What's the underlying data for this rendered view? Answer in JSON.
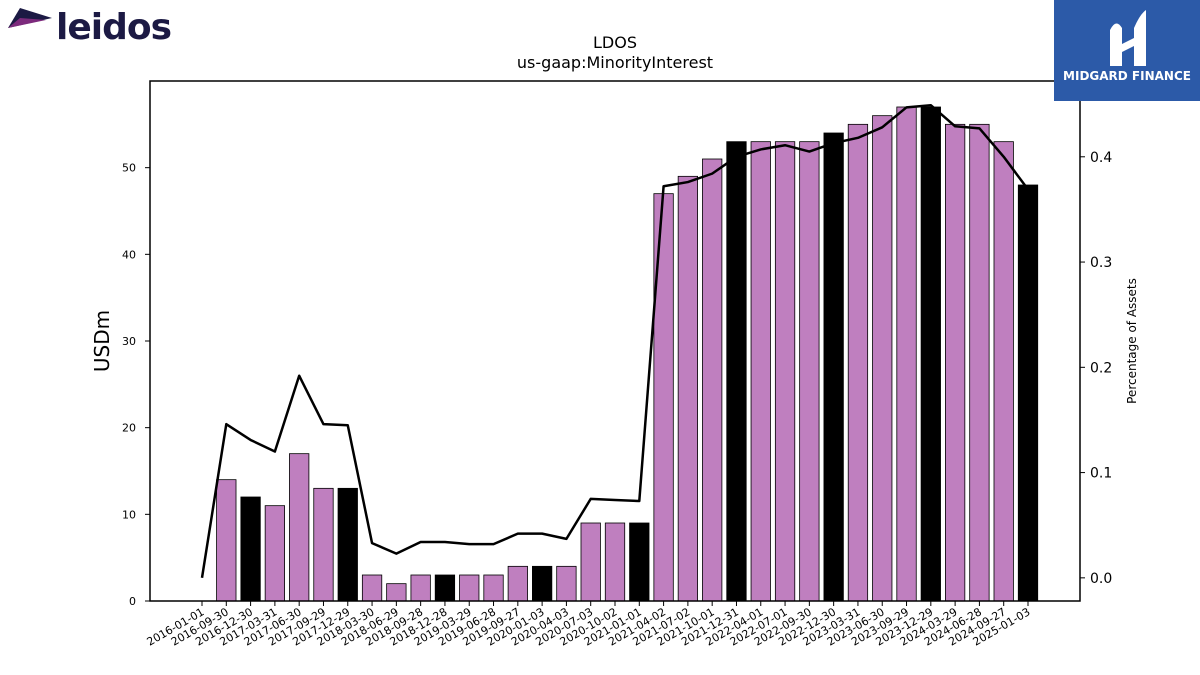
{
  "brand": {
    "left_logo_text": "leidos",
    "right_logo_text": "MIDGARD FINANCE"
  },
  "chart_data": {
    "type": "bar",
    "title": "LDOS",
    "subtitle": "us-gaap:MinorityInterest",
    "ylabel": "USDm",
    "y2label": "Percentage of Assets",
    "ylim": [
      0,
      60
    ],
    "y2lim": [
      -0.022,
      0.472
    ],
    "yticks": [
      0,
      10,
      20,
      30,
      40,
      50
    ],
    "y2ticks": [
      0.0,
      0.1,
      0.2,
      0.3,
      0.4
    ],
    "categories": [
      "2016-01-01",
      "2016-09-30",
      "2016-12-30",
      "2017-03-31",
      "2017-06-30",
      "2017-09-29",
      "2017-12-29",
      "2018-03-30",
      "2018-06-29",
      "2018-09-28",
      "2018-12-28",
      "2019-03-29",
      "2019-06-28",
      "2019-09-27",
      "2020-01-03",
      "2020-04-03",
      "2020-07-03",
      "2020-10-02",
      "2021-01-01",
      "2021-04-02",
      "2021-07-02",
      "2021-10-01",
      "2021-12-31",
      "2022-04-01",
      "2022-07-01",
      "2022-09-30",
      "2022-12-30",
      "2023-03-31",
      "2023-06-30",
      "2023-09-29",
      "2023-12-29",
      "2024-03-29",
      "2024-06-28",
      "2024-09-27",
      "2025-01-03"
    ],
    "series": [
      {
        "type": "bar",
        "values": [
          null,
          14,
          12,
          11,
          17,
          13,
          13,
          3,
          2,
          3,
          3,
          3,
          3,
          4,
          4,
          4,
          9,
          9,
          9,
          47,
          49,
          51,
          53,
          53,
          53,
          53,
          54,
          55,
          56,
          57,
          57,
          55,
          55,
          53,
          48
        ]
      },
      {
        "type": "line",
        "axis": "right",
        "values": [
          0.0,
          0.146,
          0.131,
          0.12,
          0.192,
          0.146,
          0.145,
          0.033,
          0.023,
          0.034,
          0.034,
          0.032,
          0.032,
          0.042,
          0.042,
          0.037,
          0.075,
          0.074,
          0.073,
          0.372,
          0.376,
          0.384,
          0.4,
          0.407,
          0.411,
          0.405,
          0.413,
          0.418,
          0.428,
          0.447,
          0.449,
          0.429,
          0.427,
          0.4,
          0.369
        ]
      }
    ],
    "bar_colors": {
      "default": "#bf7fbf",
      "year_end": "#000000"
    },
    "year_end_categories": [
      "2016-12-30",
      "2017-12-29",
      "2018-12-28",
      "2020-01-03",
      "2021-01-01",
      "2021-12-31",
      "2022-12-30",
      "2023-12-29",
      "2025-01-03"
    ],
    "line_color": "#000000",
    "grid": false
  }
}
